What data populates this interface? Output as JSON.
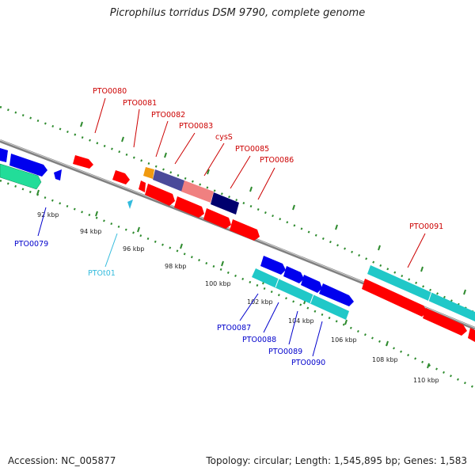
{
  "title": "Picrophilus torridus DSM 9790, complete genome",
  "footer": {
    "accession": "Accession: NC_005877",
    "summary": "Topology: circular; Length: 1,545,895 bp; Genes: 1,583"
  },
  "colors": {
    "backbone": "#808080",
    "ruler": "#2e8b2e",
    "red_feature": "#ff0000",
    "blue_feature": "#0000ee",
    "cyan_feature": "#20c8c8",
    "teal_feature": "#22dd99",
    "navy_feature": "#00006e",
    "slate_feature": "#4a4a9a",
    "pink_feature": "#f08080",
    "orange_feature": "#f09a10",
    "label_red": "#cc0000",
    "label_blue": "#0000cc",
    "label_cyan": "#33bbdd"
  },
  "ticks": [
    "92 kbp",
    "94 kbp",
    "96 kbp",
    "98 kbp",
    "100 kbp",
    "102 kbp",
    "104 kbp",
    "106 kbp",
    "108 kbp",
    "110 kbp"
  ],
  "labels_top": [
    "PTO0080",
    "PTO0081",
    "PTO0082",
    "PTO0083",
    "cysS",
    "PTO0085",
    "PTO0086",
    "PTO0091"
  ],
  "labels_bottom": [
    "PTO0079",
    "PTOt01",
    "PTO0087",
    "PTO0088",
    "PTO0089",
    "PTO0090"
  ]
}
